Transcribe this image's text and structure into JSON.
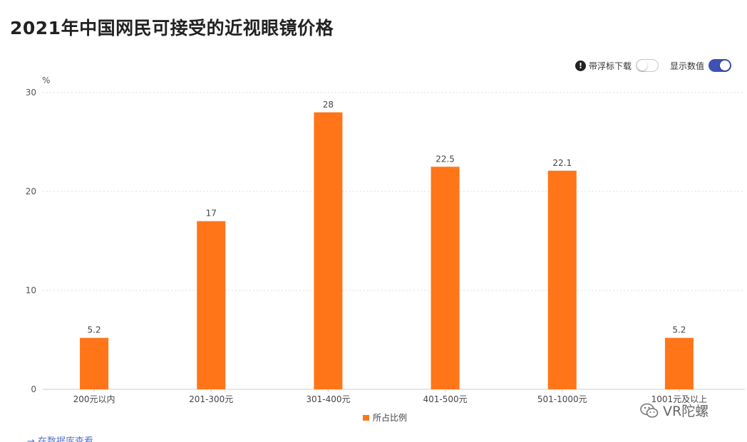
{
  "title": "2021年中国网民可接受的近视眼镜价格",
  "toolbar": {
    "float_download_label": "带浮标下载",
    "float_download_on": false,
    "show_values_label": "显示数值",
    "show_values_on": true
  },
  "link": "→ 在数据库查看",
  "watermark": "VR陀螺",
  "colors": {
    "bar": "#ff7518",
    "grid": "#dddddd",
    "axis": "#cccccc",
    "toggle_on": "#3f51b5"
  },
  "chart_data": {
    "type": "bar",
    "title": "2021年中国网民可接受的近视眼镜价格",
    "ylabel": "%",
    "xlabel": "",
    "categories": [
      "200元以内",
      "201-300元",
      "301-400元",
      "401-500元",
      "501-1000元",
      "1001元及以上"
    ],
    "series": [
      {
        "name": "所占比例",
        "values": [
          5.2,
          17,
          28,
          22.5,
          22.1,
          5.2
        ]
      }
    ],
    "ylim": [
      0,
      30
    ],
    "yticks": [
      0,
      10,
      20,
      30
    ],
    "data_labels": [
      "5.2",
      "17",
      "28",
      "22.5",
      "22.1",
      "5.2"
    ],
    "grid": true,
    "legend": "bottom-center"
  }
}
